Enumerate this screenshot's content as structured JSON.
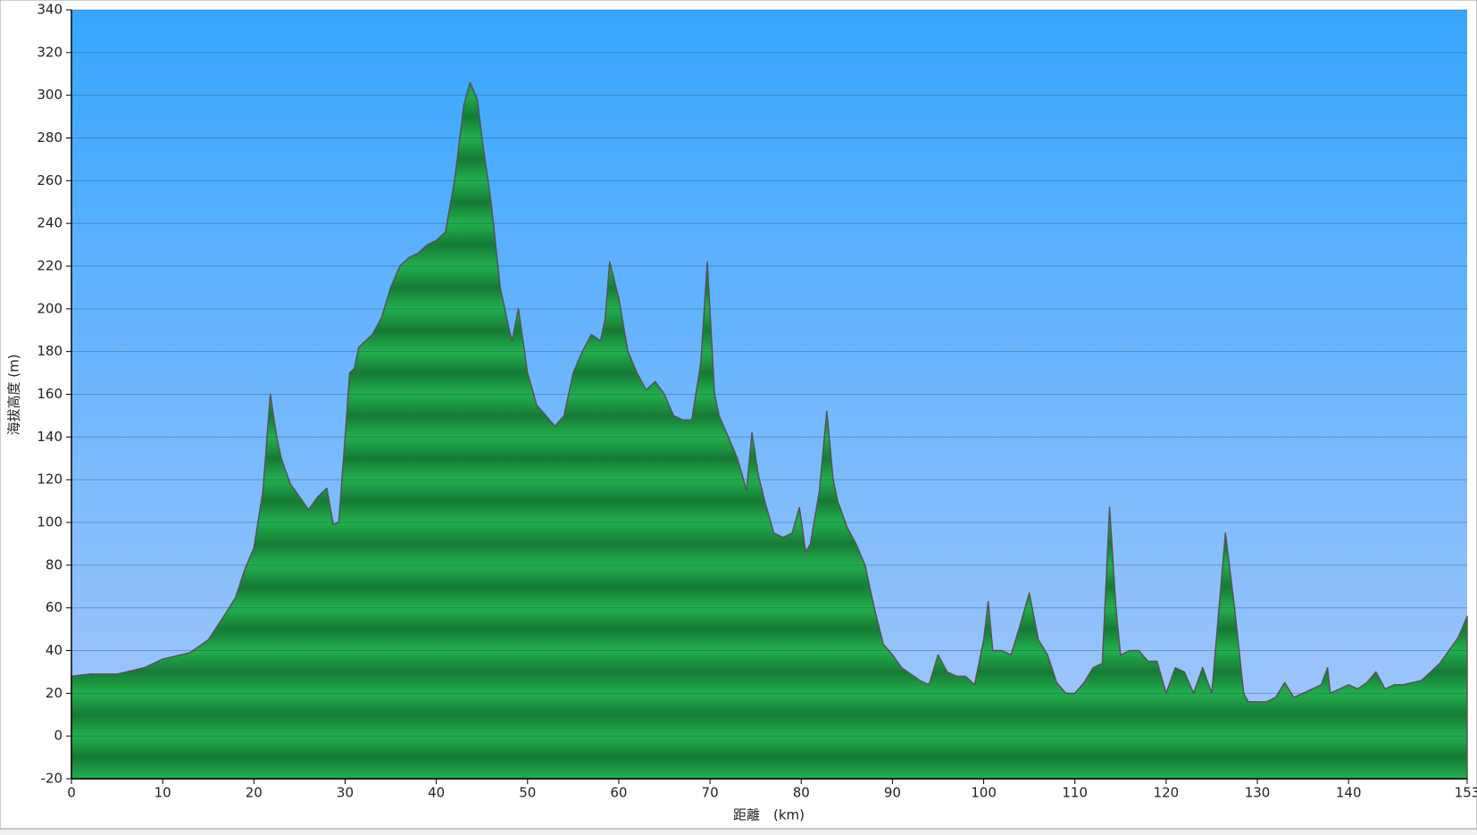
{
  "chart_data": {
    "type": "area",
    "xlabel": "距離　(km)",
    "ylabel": "海拔高度 (m)",
    "x": [
      0,
      2,
      5,
      8,
      10,
      13,
      15,
      17,
      18,
      19,
      20,
      21,
      21.8,
      22.5,
      23,
      24,
      25,
      26,
      27,
      28,
      28.7,
      29.3,
      30,
      30.5,
      31,
      31.5,
      33,
      34,
      35,
      36,
      37,
      38,
      39,
      40,
      41,
      42,
      43,
      43.7,
      44.5,
      45,
      46,
      47,
      48,
      48.3,
      49,
      50,
      51,
      52,
      53,
      54,
      55,
      56,
      57,
      58,
      58.5,
      59,
      60,
      61,
      62,
      63,
      64,
      65,
      66,
      67,
      68,
      69,
      69.7,
      70.5,
      71,
      72,
      73,
      74,
      74.6,
      75.3,
      76,
      77,
      78,
      79,
      79.8,
      80.5,
      81,
      82,
      82.8,
      83.5,
      84,
      85,
      86,
      87,
      88,
      89,
      90,
      91,
      92,
      93,
      94,
      95,
      96,
      97,
      98,
      99,
      100,
      100.5,
      101,
      102,
      103,
      104,
      105,
      106,
      107,
      108,
      109,
      110,
      111,
      112,
      113,
      113.8,
      114.5,
      115,
      116,
      117,
      118,
      119,
      120,
      121,
      122,
      123,
      124,
      125,
      125.5,
      126.5,
      127.5,
      128.5,
      129,
      130,
      131,
      132,
      133,
      134,
      135,
      136,
      137,
      137.7,
      138,
      139,
      140,
      141,
      142,
      143,
      144,
      145,
      146,
      147,
      148,
      149,
      150,
      151,
      152,
      153
    ],
    "values": [
      28,
      29,
      29,
      32,
      36,
      39,
      45,
      58,
      65,
      78,
      88,
      115,
      160,
      140,
      130,
      118,
      112,
      106,
      112,
      116,
      99,
      100,
      140,
      170,
      172,
      182,
      188,
      196,
      210,
      220,
      224,
      226,
      230,
      232,
      236,
      260,
      295,
      306,
      298,
      280,
      250,
      210,
      190,
      185,
      200,
      170,
      155,
      150,
      145,
      150,
      170,
      180,
      188,
      185,
      195,
      222,
      205,
      180,
      170,
      162,
      166,
      160,
      150,
      148,
      148,
      175,
      222,
      160,
      150,
      140,
      130,
      115,
      142,
      122,
      110,
      95,
      93,
      95,
      107,
      86,
      90,
      115,
      152,
      120,
      110,
      98,
      90,
      80,
      60,
      43,
      38,
      32,
      29,
      26,
      24,
      38,
      30,
      28,
      28,
      24,
      45,
      63,
      40,
      40,
      38,
      52,
      67,
      45,
      38,
      25,
      20,
      20,
      25,
      32,
      34,
      107,
      60,
      38,
      40,
      40,
      35,
      35,
      20,
      32,
      30,
      20,
      32,
      20,
      45,
      95,
      60,
      20,
      16,
      16,
      16,
      18,
      25,
      18,
      20,
      22,
      24,
      32,
      20,
      22,
      24,
      22,
      25,
      30,
      22,
      24,
      24,
      25,
      26,
      30,
      34,
      40,
      46,
      56
    ],
    "color": "#1fa64a",
    "xlim": [
      0,
      153
    ],
    "xticks": [
      0,
      10,
      20,
      30,
      40,
      50,
      60,
      70,
      80,
      90,
      100,
      110,
      120,
      130,
      140,
      153
    ],
    "ylim": [
      -20,
      340
    ],
    "yticks": [
      -20,
      0,
      20,
      40,
      60,
      80,
      100,
      120,
      140,
      160,
      180,
      200,
      220,
      240,
      260,
      280,
      300,
      320,
      340
    ],
    "grid": true
  }
}
